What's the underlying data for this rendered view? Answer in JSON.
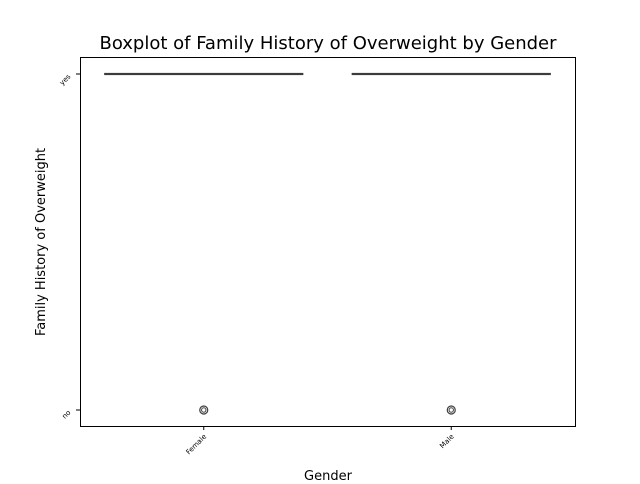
{
  "chart_data": {
    "type": "boxplot",
    "title": "Boxplot of Family History of Overweight by Gender",
    "xlabel": "Gender",
    "ylabel": "Family History of Overweight",
    "categories": [
      "Female",
      "Male"
    ],
    "y_categories": [
      "no",
      "yes"
    ],
    "y_scale": "categorical",
    "grid": false,
    "legend": "none",
    "boxes": [
      {
        "category": "Female",
        "whisker_low": "yes",
        "q1": "yes",
        "median": "yes",
        "q3": "yes",
        "whisker_high": "yes",
        "outliers": [
          "no"
        ]
      },
      {
        "category": "Male",
        "whisker_low": "yes",
        "q1": "yes",
        "median": "yes",
        "q3": "yes",
        "whisker_high": "yes",
        "outliers": [
          "no"
        ]
      }
    ],
    "colors": {
      "box_line": "#3d3d3d",
      "axes": "#000000",
      "background": "#ffffff"
    }
  }
}
